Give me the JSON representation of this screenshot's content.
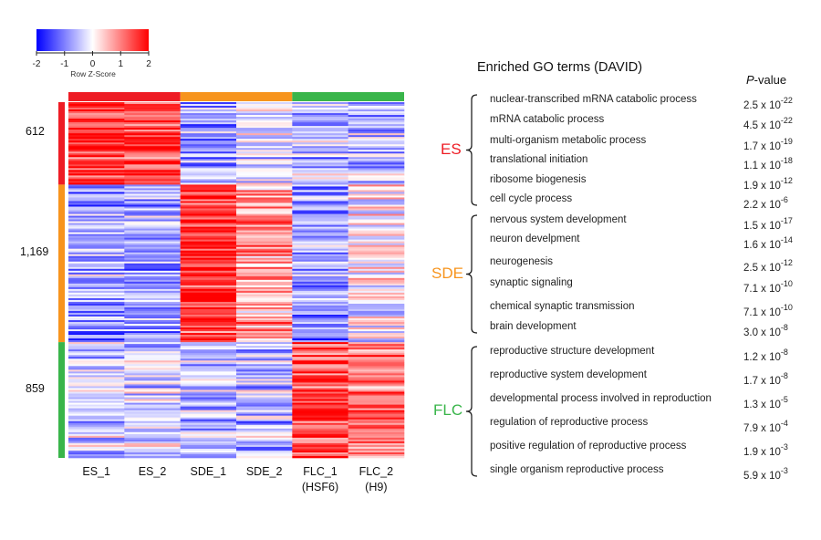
{
  "chart_data": {
    "type": "heatmap",
    "color_key": {
      "title": "Row Z-Score",
      "ticks": [
        "-2",
        "-1",
        "0",
        "1",
        "2"
      ],
      "range": [
        -2,
        2
      ],
      "low_color": "#0000ff",
      "mid_color": "#ffffff",
      "high_color": "#ff0000"
    },
    "columns": [
      {
        "label": "ES_1",
        "sub": ""
      },
      {
        "label": "ES_2",
        "sub": ""
      },
      {
        "label": "SDE_1",
        "sub": ""
      },
      {
        "label": "SDE_2",
        "sub": ""
      },
      {
        "label": "FLC_1",
        "sub": "(HSF6)"
      },
      {
        "label": "FLC_2",
        "sub": "(H9)"
      }
    ],
    "column_groups": [
      {
        "name": "ES",
        "color": "#ee1c24"
      },
      {
        "name": "SDE",
        "color": "#f7941d"
      },
      {
        "name": "FLC",
        "color": "#39b54a"
      }
    ],
    "clusters": [
      {
        "count": "612",
        "genes": 612,
        "color": "#ee1c24",
        "mean_z": [
          1.5,
          1.5,
          -0.7,
          -0.3,
          -0.5,
          -0.6
        ]
      },
      {
        "count": "1,169",
        "genes": 1169,
        "color": "#f7941d",
        "mean_z": [
          -0.7,
          -0.7,
          1.6,
          0.8,
          -0.8,
          0.1
        ]
      },
      {
        "count": "859",
        "genes": 859,
        "color": "#39b54a",
        "mean_z": [
          -0.4,
          -0.3,
          -0.6,
          -0.5,
          1.5,
          1.0
        ]
      }
    ]
  },
  "go": {
    "title": "Enriched GO terms (DAVID)",
    "pvalue_header_italic": "P",
    "pvalue_header_rest": "-value",
    "groups": [
      {
        "name": "ES",
        "color": "#ee1c24",
        "terms": [
          {
            "term": "nuclear-transcribed mRNA catabolic process",
            "mant": "2.5 x 10",
            "exp": "-22"
          },
          {
            "term": "mRNA catabolic process",
            "mant": "4.5 x 10",
            "exp": "-22"
          },
          {
            "term": "multi-organism metabolic process",
            "mant": "1.7 x 10",
            "exp": "-19"
          },
          {
            "term": "translational initiation",
            "mant": "1.1 x 10",
            "exp": "-18"
          },
          {
            "term": "ribosome biogenesis",
            "mant": "1.9 x 10",
            "exp": "-12"
          },
          {
            "term": "cell cycle process",
            "mant": "2.2 x 10",
            "exp": "-6"
          }
        ]
      },
      {
        "name": "SDE",
        "color": "#f7941d",
        "terms": [
          {
            "term": "nervous system development",
            "mant": "1.5 x 10",
            "exp": "-17"
          },
          {
            "term": "neuron develpment",
            "mant": "1.6 x 10",
            "exp": "-14"
          },
          {
            "term": "neurogenesis",
            "mant": "2.5 x 10",
            "exp": "-12"
          },
          {
            "term": "synaptic signaling",
            "mant": "7.1 x 10",
            "exp": "-10"
          },
          {
            "term": "chemical synaptic transmission",
            "mant": "7.1 x 10",
            "exp": "-10"
          },
          {
            "term": "brain development",
            "mant": "3.0 x 10",
            "exp": "-8"
          }
        ]
      },
      {
        "name": "FLC",
        "color": "#39b54a",
        "terms": [
          {
            "term": "reproductive structure development",
            "mant": "1.2 x 10",
            "exp": "-8"
          },
          {
            "term": "reproductive system development",
            "mant": "1.7 x 10",
            "exp": "-8"
          },
          {
            "term": "developmental process involved in reproduction",
            "mant": "1.3 x 10",
            "exp": "-5"
          },
          {
            "term": "regulation of reproductive process",
            "mant": "7.9 x 10",
            "exp": "-4"
          },
          {
            "term": "positive regulation of reproductive process",
            "mant": "1.9 x 10",
            "exp": "-3"
          },
          {
            "term": "single organism reproductive process",
            "mant": "5.9 x 10",
            "exp": "-3"
          }
        ]
      }
    ]
  }
}
